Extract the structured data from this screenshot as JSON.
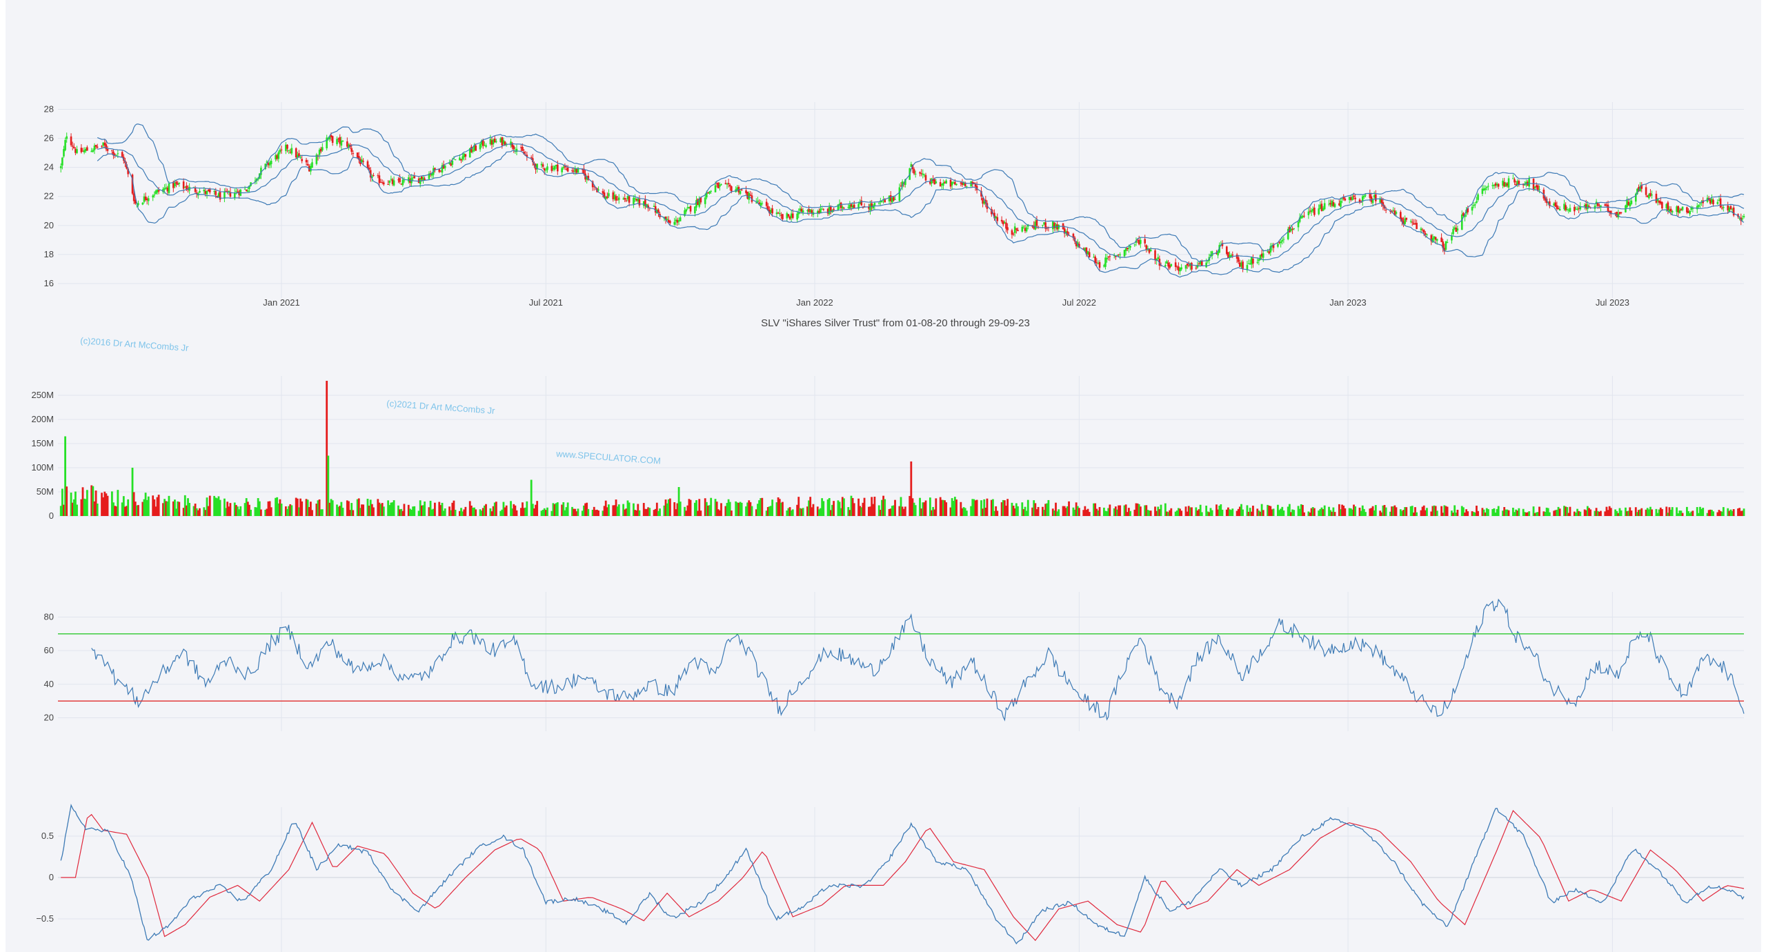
{
  "title": "SLV \"iShares Silver Trust\" from 01-08-20 through 29-09-23",
  "watermarks": [
    "(c)2016 Dr Art McCombs Jr",
    "(c)2021 Dr Art McCombs Jr",
    "www.SPECULATOR.COM"
  ],
  "colors": {
    "up": "#26e026",
    "down": "#e51c1c",
    "band": "#3d7ab5",
    "rsi": "#3d7ab5",
    "overbought": "#2ec82e",
    "oversold": "#e02b2b",
    "macd": "#3d7ab5",
    "signal": "#e0283c",
    "grid": "#e1e5ee",
    "background": "#f3f4f8"
  },
  "x_ticks": [
    "Jan 2021",
    "Jul 2021",
    "Jan 2022",
    "Jul 2022",
    "Jan 2023",
    "Jul 2023"
  ],
  "chart_data": [
    {
      "type": "candlestick",
      "name": "price",
      "date_range": [
        "2020-08-01",
        "2023-09-29"
      ],
      "ylim": [
        15,
        28.5
      ],
      "y_ticks": [
        "16",
        "18",
        "20",
        "22",
        "24",
        "26",
        "28"
      ],
      "close_path": [
        [
          "2020-08-03",
          24.0
        ],
        [
          "2020-08-07",
          26.3
        ],
        [
          "2020-08-14",
          25.0
        ],
        [
          "2020-09-01",
          25.5
        ],
        [
          "2020-09-15",
          24.6
        ],
        [
          "2020-09-23",
          21.5
        ],
        [
          "2020-10-05",
          22.2
        ],
        [
          "2020-10-20",
          22.8
        ],
        [
          "2020-11-05",
          22.4
        ],
        [
          "2020-11-20",
          22.0
        ],
        [
          "2020-12-08",
          22.5
        ],
        [
          "2020-12-20",
          24.0
        ],
        [
          "2021-01-05",
          25.4
        ],
        [
          "2021-01-20",
          24.0
        ],
        [
          "2021-02-01",
          26.0
        ],
        [
          "2021-02-15",
          25.6
        ],
        [
          "2021-03-05",
          23.2
        ],
        [
          "2021-03-20",
          22.9
        ],
        [
          "2021-04-05",
          23.2
        ],
        [
          "2021-04-20",
          24.0
        ],
        [
          "2021-05-05",
          24.8
        ],
        [
          "2021-05-20",
          25.7
        ],
        [
          "2021-06-05",
          25.8
        ],
        [
          "2021-06-15",
          25.0
        ],
        [
          "2021-06-25",
          24.0
        ],
        [
          "2021-07-10",
          24.0
        ],
        [
          "2021-07-25",
          23.7
        ],
        [
          "2021-08-10",
          22.0
        ],
        [
          "2021-08-25",
          21.8
        ],
        [
          "2021-09-10",
          21.4
        ],
        [
          "2021-09-25",
          20.0
        ],
        [
          "2021-10-10",
          21.4
        ],
        [
          "2021-10-25",
          22.7
        ],
        [
          "2021-11-10",
          22.5
        ],
        [
          "2021-11-25",
          21.4
        ],
        [
          "2021-12-10",
          20.5
        ],
        [
          "2021-12-25",
          21.0
        ],
        [
          "2022-01-10",
          21.0
        ],
        [
          "2022-01-25",
          21.5
        ],
        [
          "2022-02-10",
          21.3
        ],
        [
          "2022-02-25",
          22.0
        ],
        [
          "2022-03-08",
          24.0
        ],
        [
          "2022-03-20",
          23.0
        ],
        [
          "2022-04-05",
          22.8
        ],
        [
          "2022-04-18",
          23.0
        ],
        [
          "2022-05-01",
          21.0
        ],
        [
          "2022-05-15",
          19.6
        ],
        [
          "2022-06-01",
          20.0
        ],
        [
          "2022-06-15",
          20.0
        ],
        [
          "2022-07-01",
          18.6
        ],
        [
          "2022-07-15",
          17.3
        ],
        [
          "2022-08-01",
          18.3
        ],
        [
          "2022-08-12",
          19.0
        ],
        [
          "2022-08-25",
          17.5
        ],
        [
          "2022-09-10",
          17.0
        ],
        [
          "2022-09-25",
          17.4
        ],
        [
          "2022-10-05",
          18.5
        ],
        [
          "2022-10-20",
          17.2
        ],
        [
          "2022-11-05",
          18.0
        ],
        [
          "2022-11-20",
          19.5
        ],
        [
          "2022-12-05",
          20.8
        ],
        [
          "2022-12-20",
          21.5
        ],
        [
          "2023-01-05",
          21.8
        ],
        [
          "2023-01-20",
          21.9
        ],
        [
          "2023-02-05",
          20.5
        ],
        [
          "2023-02-20",
          19.7
        ],
        [
          "2023-03-08",
          18.5
        ],
        [
          "2023-03-20",
          20.5
        ],
        [
          "2023-04-05",
          22.6
        ],
        [
          "2023-04-20",
          23.0
        ],
        [
          "2023-05-05",
          23.0
        ],
        [
          "2023-05-20",
          21.4
        ],
        [
          "2023-06-05",
          21.1
        ],
        [
          "2023-06-20",
          21.4
        ],
        [
          "2023-07-05",
          20.8
        ],
        [
          "2023-07-20",
          22.6
        ],
        [
          "2023-08-05",
          21.3
        ],
        [
          "2023-08-20",
          21.0
        ],
        [
          "2023-09-05",
          21.8
        ],
        [
          "2023-09-15",
          21.4
        ],
        [
          "2023-09-29",
          20.4
        ]
      ]
    },
    {
      "type": "bar",
      "name": "volume",
      "ylim": [
        0,
        290000000
      ],
      "y_ticks": [
        "0",
        "50M",
        "100M",
        "150M",
        "200M",
        "250M"
      ],
      "spikes": [
        [
          "2020-08-06",
          165000000
        ],
        [
          "2020-09-21",
          100000000
        ],
        [
          "2021-02-01",
          280000000
        ],
        [
          "2021-02-02",
          125000000
        ],
        [
          "2021-06-21",
          75000000
        ],
        [
          "2021-09-30",
          60000000
        ],
        [
          "2022-03-08",
          113000000
        ]
      ],
      "baseline_level": [
        [
          "2020-08-01",
          60000000
        ],
        [
          "2020-10-15",
          35000000
        ],
        [
          "2021-06-01",
          25000000
        ],
        [
          "2022-03-01",
          35000000
        ],
        [
          "2022-08-01",
          22000000
        ],
        [
          "2023-09-29",
          15000000
        ]
      ]
    },
    {
      "type": "line",
      "name": "rsi",
      "ylim": [
        12,
        95
      ],
      "y_ticks": [
        "20",
        "40",
        "60",
        "80"
      ],
      "hlines": [
        70,
        30
      ],
      "path": [
        [
          "2020-08-22",
          58
        ],
        [
          "2020-08-30",
          60
        ],
        [
          "2020-09-08",
          45
        ],
        [
          "2020-09-25",
          30
        ],
        [
          "2020-10-10",
          45
        ],
        [
          "2020-10-25",
          60
        ],
        [
          "2020-11-10",
          40
        ],
        [
          "2020-11-25",
          55
        ],
        [
          "2020-12-10",
          45
        ],
        [
          "2020-12-25",
          65
        ],
        [
          "2021-01-05",
          73
        ],
        [
          "2021-01-20",
          50
        ],
        [
          "2021-02-03",
          65
        ],
        [
          "2021-02-20",
          48
        ],
        [
          "2021-03-10",
          55
        ],
        [
          "2021-03-28",
          42
        ],
        [
          "2021-04-15",
          48
        ],
        [
          "2021-04-25",
          65
        ],
        [
          "2021-05-10",
          70
        ],
        [
          "2021-05-25",
          60
        ],
        [
          "2021-06-10",
          65
        ],
        [
          "2021-06-22",
          40
        ],
        [
          "2021-07-10",
          38
        ],
        [
          "2021-07-25",
          45
        ],
        [
          "2021-08-10",
          35
        ],
        [
          "2021-08-25",
          32
        ],
        [
          "2021-09-10",
          40
        ],
        [
          "2021-09-25",
          35
        ],
        [
          "2021-10-10",
          55
        ],
        [
          "2021-10-25",
          45
        ],
        [
          "2021-11-05",
          70
        ],
        [
          "2021-11-15",
          62
        ],
        [
          "2021-11-25",
          45
        ],
        [
          "2021-12-08",
          25
        ],
        [
          "2021-12-20",
          40
        ],
        [
          "2022-01-10",
          60
        ],
        [
          "2022-01-25",
          55
        ],
        [
          "2022-02-10",
          48
        ],
        [
          "2022-02-25",
          65
        ],
        [
          "2022-03-08",
          78
        ],
        [
          "2022-03-20",
          55
        ],
        [
          "2022-04-05",
          40
        ],
        [
          "2022-04-18",
          55
        ],
        [
          "2022-05-01",
          35
        ],
        [
          "2022-05-12",
          22
        ],
        [
          "2022-05-25",
          40
        ],
        [
          "2022-06-10",
          58
        ],
        [
          "2022-06-20",
          45
        ],
        [
          "2022-07-05",
          30
        ],
        [
          "2022-07-20",
          22
        ],
        [
          "2022-08-01",
          50
        ],
        [
          "2022-08-12",
          68
        ],
        [
          "2022-08-25",
          40
        ],
        [
          "2022-09-05",
          28
        ],
        [
          "2022-09-20",
          55
        ],
        [
          "2022-10-05",
          68
        ],
        [
          "2022-10-20",
          45
        ],
        [
          "2022-11-01",
          58
        ],
        [
          "2022-11-15",
          75
        ],
        [
          "2022-11-30",
          70
        ],
        [
          "2022-12-15",
          60
        ],
        [
          "2023-01-05",
          65
        ],
        [
          "2023-01-20",
          60
        ],
        [
          "2023-02-05",
          45
        ],
        [
          "2023-02-20",
          30
        ],
        [
          "2023-03-05",
          22
        ],
        [
          "2023-03-15",
          35
        ],
        [
          "2023-03-25",
          60
        ],
        [
          "2023-04-05",
          85
        ],
        [
          "2023-04-15",
          90
        ],
        [
          "2023-04-25",
          70
        ],
        [
          "2023-05-10",
          55
        ],
        [
          "2023-05-20",
          38
        ],
        [
          "2023-06-05",
          30
        ],
        [
          "2023-06-20",
          52
        ],
        [
          "2023-07-05",
          45
        ],
        [
          "2023-07-15",
          65
        ],
        [
          "2023-07-25",
          70
        ],
        [
          "2023-08-08",
          45
        ],
        [
          "2023-08-20",
          32
        ],
        [
          "2023-09-01",
          55
        ],
        [
          "2023-09-15",
          50
        ],
        [
          "2023-09-25",
          35
        ],
        [
          "2023-09-29",
          26
        ]
      ]
    },
    {
      "type": "line",
      "name": "macd",
      "ylim": [
        -0.9,
        0.85
      ],
      "y_ticks": [
        "−0.5",
        "0",
        "0.5"
      ],
      "macd_path": [
        [
          "2020-08-01",
          0.0
        ],
        [
          "2020-08-10",
          0.85
        ],
        [
          "2020-08-20",
          0.6
        ],
        [
          "2020-09-05",
          0.55
        ],
        [
          "2020-09-20",
          0.0
        ],
        [
          "2020-10-01",
          -0.75
        ],
        [
          "2020-10-15",
          -0.6
        ],
        [
          "2020-11-01",
          -0.25
        ],
        [
          "2020-11-20",
          -0.1
        ],
        [
          "2020-12-05",
          -0.3
        ],
        [
          "2020-12-25",
          0.1
        ],
        [
          "2021-01-10",
          0.7
        ],
        [
          "2021-01-25",
          0.1
        ],
        [
          "2021-02-10",
          0.4
        ],
        [
          "2021-03-01",
          0.3
        ],
        [
          "2021-03-20",
          -0.2
        ],
        [
          "2021-04-05",
          -0.4
        ],
        [
          "2021-04-25",
          0.0
        ],
        [
          "2021-05-15",
          0.35
        ],
        [
          "2021-06-01",
          0.5
        ],
        [
          "2021-06-15",
          0.35
        ],
        [
          "2021-07-01",
          -0.3
        ],
        [
          "2021-07-20",
          -0.25
        ],
        [
          "2021-08-10",
          -0.4
        ],
        [
          "2021-08-25",
          -0.55
        ],
        [
          "2021-09-10",
          -0.2
        ],
        [
          "2021-09-25",
          -0.5
        ],
        [
          "2021-10-15",
          -0.3
        ],
        [
          "2021-11-01",
          0.0
        ],
        [
          "2021-11-15",
          0.35
        ],
        [
          "2021-12-05",
          -0.5
        ],
        [
          "2021-12-25",
          -0.35
        ],
        [
          "2022-01-10",
          -0.1
        ],
        [
          "2022-02-05",
          -0.1
        ],
        [
          "2022-02-20",
          0.2
        ],
        [
          "2022-03-08",
          0.65
        ],
        [
          "2022-03-25",
          0.2
        ],
        [
          "2022-04-15",
          0.1
        ],
        [
          "2022-05-05",
          -0.5
        ],
        [
          "2022-05-20",
          -0.8
        ],
        [
          "2022-06-05",
          -0.4
        ],
        [
          "2022-06-25",
          -0.3
        ],
        [
          "2022-07-15",
          -0.6
        ],
        [
          "2022-08-01",
          -0.7
        ],
        [
          "2022-08-15",
          0.0
        ],
        [
          "2022-09-01",
          -0.4
        ],
        [
          "2022-09-15",
          -0.3
        ],
        [
          "2022-10-05",
          0.1
        ],
        [
          "2022-10-20",
          -0.1
        ],
        [
          "2022-11-10",
          0.1
        ],
        [
          "2022-12-01",
          0.5
        ],
        [
          "2022-12-20",
          0.7
        ],
        [
          "2023-01-10",
          0.6
        ],
        [
          "2023-02-01",
          0.2
        ],
        [
          "2023-02-20",
          -0.3
        ],
        [
          "2023-03-10",
          -0.6
        ],
        [
          "2023-04-01",
          0.35
        ],
        [
          "2023-04-12",
          0.85
        ],
        [
          "2023-05-01",
          0.5
        ],
        [
          "2023-05-20",
          -0.3
        ],
        [
          "2023-06-05",
          -0.15
        ],
        [
          "2023-06-25",
          -0.3
        ],
        [
          "2023-07-15",
          0.35
        ],
        [
          "2023-08-01",
          0.1
        ],
        [
          "2023-08-20",
          -0.3
        ],
        [
          "2023-09-05",
          -0.1
        ],
        [
          "2023-09-20",
          -0.15
        ],
        [
          "2023-09-29",
          -0.25
        ]
      ],
      "signal_lag_days": 12
    }
  ]
}
